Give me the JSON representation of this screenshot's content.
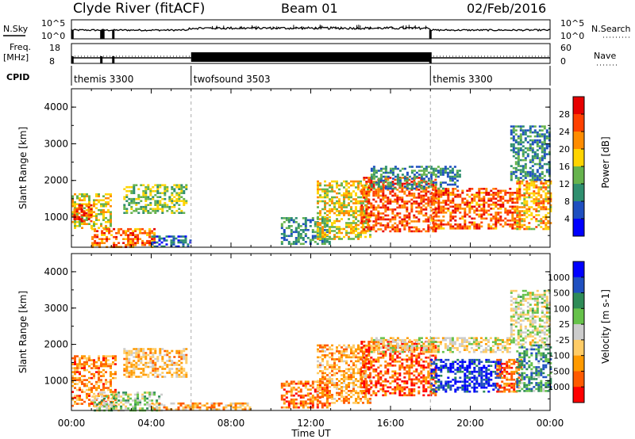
{
  "header": {
    "station": "Clyde River (fitACF)",
    "beam": "Beam 01",
    "date": "02/Feb/2016"
  },
  "strips": {
    "nsky_label": "N.Sky",
    "nsearch_label": "N.Search",
    "noise_tick_top": "10^5",
    "noise_tick_bottom": "10^0",
    "freq_label_1": "Freq.",
    "freq_label_2": "[MHz]",
    "freq_tick_top": "18",
    "freq_tick_bottom": "8",
    "nave_label": "Nave",
    "nave_tick_top": "60",
    "nave_tick_bottom": "0",
    "cpid_label": "CPID",
    "cpid_segments": [
      {
        "name": "themis 3300",
        "start_hr": 0,
        "end_hr": 6
      },
      {
        "name": "twofsound 3503",
        "start_hr": 6,
        "end_hr": 18
      },
      {
        "name": "themis 3300",
        "start_hr": 18,
        "end_hr": 24
      }
    ]
  },
  "colors": {
    "power": [
      "#0000ff",
      "#1f4fc0",
      "#2f8f6f",
      "#66b34d",
      "#ffd400",
      "#ff8c00",
      "#ff4000",
      "#e60000"
    ],
    "velocity": [
      "#ff0000",
      "#ff5a00",
      "#ff9a00",
      "#ffcc66",
      "#cccccc",
      "#66c24a",
      "#2e8b57",
      "#2050c0",
      "#0000ff"
    ]
  },
  "chart_data": [
    {
      "type": "heatmap",
      "title": "Power",
      "xlabel": "",
      "ylabel": "Slant Range [km]",
      "x_ticks": [
        "00:00",
        "04:00",
        "08:00",
        "12:00",
        "16:00",
        "20:00",
        "00:00"
      ],
      "y_ticks": [
        "1000",
        "2000",
        "3000",
        "4000"
      ],
      "xlim_hr": [
        0,
        24
      ],
      "ylim_km": [
        180,
        4500
      ],
      "colorbar": {
        "label": "Power [dB]",
        "ticks": [
          "28",
          "24",
          "20",
          "16",
          "12",
          "8",
          "4"
        ],
        "range": [
          0,
          30
        ]
      },
      "scatter_regions": [
        {
          "t0": 0.0,
          "t1": 2.0,
          "r0": 700,
          "r1": 1650,
          "level": 0.55
        },
        {
          "t0": 0.1,
          "t1": 1.0,
          "r0": 900,
          "r1": 1350,
          "level": 0.85
        },
        {
          "t0": 1.0,
          "t1": 4.2,
          "r0": 180,
          "r1": 700,
          "level": 0.75
        },
        {
          "t0": 2.6,
          "t1": 5.8,
          "r0": 1100,
          "r1": 1900,
          "level": 0.45
        },
        {
          "t0": 4.0,
          "t1": 6.0,
          "r0": 200,
          "r1": 500,
          "level": 0.2
        },
        {
          "t0": 10.5,
          "t1": 13.0,
          "r0": 250,
          "r1": 1000,
          "level": 0.3
        },
        {
          "t0": 12.3,
          "t1": 15.0,
          "r0": 400,
          "r1": 2000,
          "level": 0.55
        },
        {
          "t0": 14.5,
          "t1": 18.3,
          "r0": 600,
          "r1": 2100,
          "level": 0.8
        },
        {
          "t0": 18.0,
          "t1": 22.5,
          "r0": 700,
          "r1": 1800,
          "level": 0.78
        },
        {
          "t0": 22.3,
          "t1": 24.0,
          "r0": 700,
          "r1": 2000,
          "level": 0.65
        },
        {
          "t0": 15.0,
          "t1": 19.5,
          "r0": 1800,
          "r1": 2400,
          "level": 0.3
        },
        {
          "t0": 22.0,
          "t1": 24.0,
          "r0": 2000,
          "r1": 3500,
          "level": 0.3
        }
      ]
    },
    {
      "type": "heatmap",
      "title": "Velocity",
      "xlabel": "Time UT",
      "ylabel": "Slant Range [km]",
      "x_ticks": [
        "00:00",
        "04:00",
        "08:00",
        "12:00",
        "16:00",
        "20:00",
        "00:00"
      ],
      "y_ticks": [
        "1000",
        "2000",
        "3000",
        "4000"
      ],
      "xlim_hr": [
        0,
        24
      ],
      "ylim_km": [
        180,
        4500
      ],
      "colorbar": {
        "label": "Velocity [m s-1]",
        "ticks": [
          "1000",
          "500",
          "100",
          "25",
          "-25",
          "-100",
          "-500",
          "-1000"
        ],
        "range": [
          -1000,
          1000
        ]
      },
      "scatter_regions": [
        {
          "t0": 0.0,
          "t1": 2.2,
          "r0": 300,
          "r1": 1700,
          "level": 0.25
        },
        {
          "t0": 1.0,
          "t1": 4.5,
          "r0": 180,
          "r1": 700,
          "level": 0.55
        },
        {
          "t0": 2.6,
          "t1": 5.8,
          "r0": 1100,
          "r1": 1900,
          "level": 0.35
        },
        {
          "t0": 4.0,
          "t1": 9.0,
          "r0": 200,
          "r1": 400,
          "level": 0.3
        },
        {
          "t0": 10.5,
          "t1": 13.0,
          "r0": 250,
          "r1": 1000,
          "level": 0.2
        },
        {
          "t0": 12.3,
          "t1": 15.0,
          "r0": 400,
          "r1": 2000,
          "level": 0.3
        },
        {
          "t0": 14.5,
          "t1": 18.3,
          "r0": 600,
          "r1": 2100,
          "level": 0.15
        },
        {
          "t0": 18.0,
          "t1": 21.5,
          "r0": 700,
          "r1": 1600,
          "level": 0.9
        },
        {
          "t0": 21.3,
          "t1": 22.6,
          "r0": 700,
          "r1": 1600,
          "level": 0.2
        },
        {
          "t0": 22.3,
          "t1": 24.0,
          "r0": 700,
          "r1": 2000,
          "level": 0.7
        },
        {
          "t0": 15.0,
          "t1": 22.0,
          "r0": 1800,
          "r1": 2200,
          "level": 0.45
        },
        {
          "t0": 22.0,
          "t1": 24.0,
          "r0": 2000,
          "r1": 3500,
          "level": 0.5
        }
      ]
    }
  ]
}
